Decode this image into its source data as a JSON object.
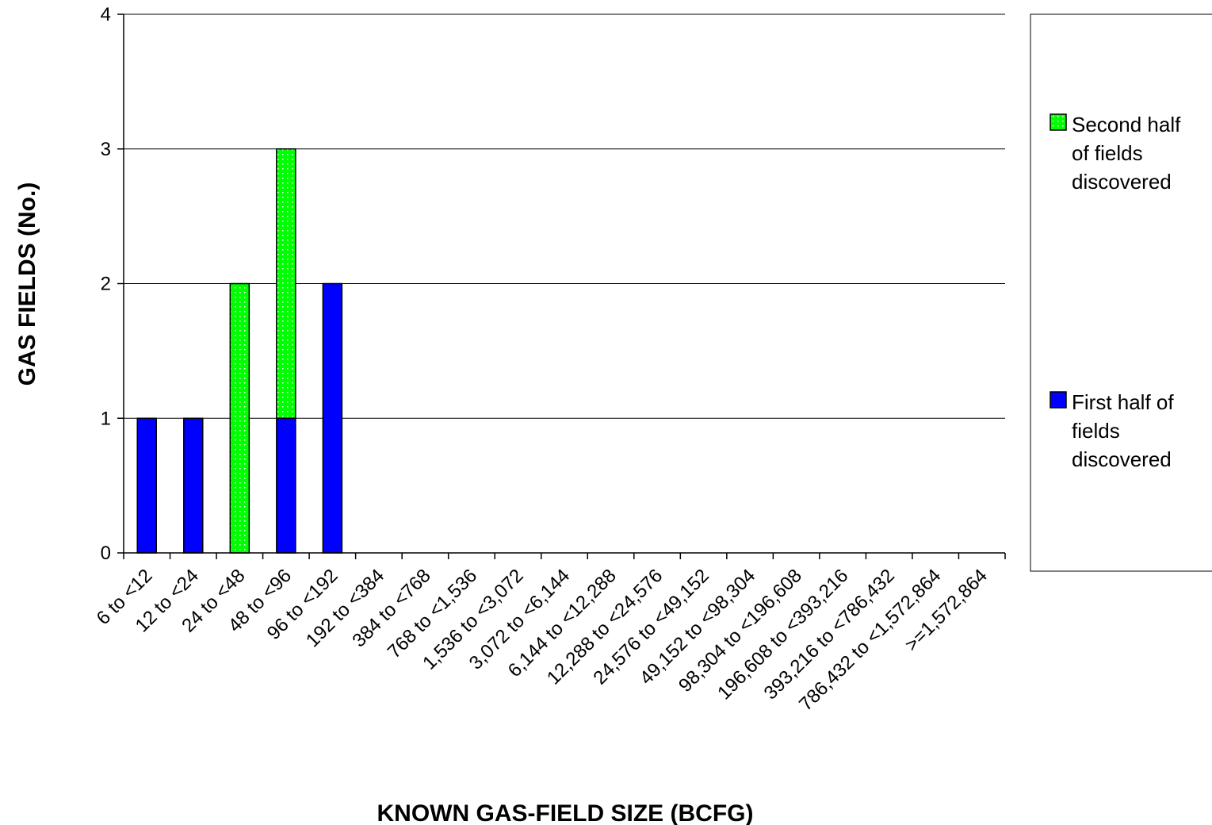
{
  "chart_data": {
    "type": "bar",
    "stacked": true,
    "title": "",
    "xlabel": "KNOWN GAS-FIELD SIZE (BCFG)",
    "ylabel": "GAS FIELDS (No.)",
    "ylim": [
      0,
      4
    ],
    "yticks": [
      0,
      1,
      2,
      3,
      4
    ],
    "grid": true,
    "legend_position": "right",
    "categories": [
      "6 to <12",
      "12 to <24",
      "24 to <48",
      "48 to <96",
      "96 to <192",
      "192 to <384",
      "384 to <768",
      "768 to <1,536",
      "1,536 to <3,072",
      "3,072 to <6,144",
      "6,144 to <12,288",
      "12,288 to <24,576",
      "24,576 to <49,152",
      "49,152 to <98,304",
      "98,304 to <196,608",
      "196,608 to <393,216",
      "393,216 to <786,432",
      "786,432 to <1,572,864",
      ">=1,572,864"
    ],
    "series": [
      {
        "name": "First half of fields discovered",
        "legend_lines": [
          "First half of",
          "fields",
          "discovered"
        ],
        "color": "#0000FF",
        "values": [
          1,
          1,
          0,
          1,
          2,
          0,
          0,
          0,
          0,
          0,
          0,
          0,
          0,
          0,
          0,
          0,
          0,
          0,
          0
        ]
      },
      {
        "name": "Second half of fields discovered",
        "legend_lines": [
          "Second half",
          "of fields",
          "discovered"
        ],
        "color": "#00FF00",
        "values": [
          0,
          0,
          2,
          2,
          0,
          0,
          0,
          0,
          0,
          0,
          0,
          0,
          0,
          0,
          0,
          0,
          0,
          0,
          0
        ]
      }
    ]
  }
}
